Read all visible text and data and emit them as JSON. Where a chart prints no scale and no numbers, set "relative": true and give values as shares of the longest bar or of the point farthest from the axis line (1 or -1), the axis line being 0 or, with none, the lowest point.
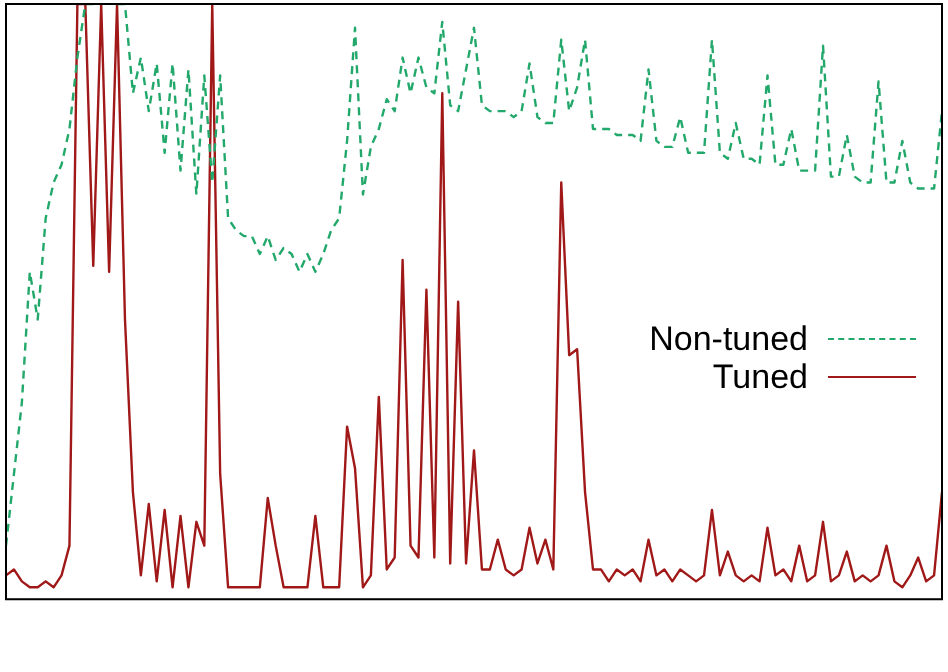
{
  "chart_data": {
    "type": "line",
    "relative": true,
    "marker": "none",
    "legend": "right",
    "grid": false,
    "categories": [
      null,
      null,
      null,
      null,
      null,
      null,
      null,
      null,
      null,
      null,
      null,
      null,
      null,
      null,
      null,
      null,
      null,
      null,
      null,
      null,
      null,
      null,
      null,
      null,
      null,
      null,
      null,
      null,
      null,
      null,
      null,
      null,
      null,
      null,
      null,
      null,
      null,
      null,
      null,
      null,
      null,
      null,
      null,
      null,
      null,
      null,
      null,
      null,
      null,
      null,
      null,
      null,
      null,
      null,
      null,
      null,
      null,
      null,
      null,
      null,
      null,
      null,
      null,
      null,
      null,
      null,
      null,
      null,
      null,
      null,
      null,
      null,
      null,
      null,
      null,
      null,
      null,
      null,
      null,
      null,
      null,
      null,
      null,
      null,
      null,
      null,
      null,
      null,
      null,
      null,
      null,
      null,
      null,
      null,
      null,
      null,
      null,
      null,
      null,
      null,
      null,
      null,
      null,
      null,
      null,
      null,
      null,
      null,
      null,
      null,
      null,
      null,
      null,
      null,
      null,
      null,
      null,
      null,
      null
    ],
    "series": [
      {
        "name": "Non-tuned",
        "color": "#22a86a",
        "line_style": "dashed",
        "values": [
          0.09,
          0.21,
          0.33,
          0.55,
          0.47,
          0.64,
          0.7,
          0.73,
          0.79,
          0.91,
          1,
          1,
          null,
          null,
          1,
          1,
          0.85,
          0.91,
          0.82,
          0.9,
          0.75,
          0.9,
          0.72,
          0.89,
          0.68,
          0.88,
          0.7,
          0.88,
          0.64,
          0.62,
          0.61,
          0.61,
          0.58,
          0.61,
          0.57,
          0.59,
          0.58,
          0.55,
          0.58,
          0.55,
          0.58,
          0.62,
          0.64,
          0.77,
          0.96,
          0.68,
          0.76,
          0.79,
          0.84,
          0.82,
          0.91,
          0.85,
          0.91,
          0.86,
          0.85,
          0.97,
          0.83,
          0.82,
          0.89,
          0.96,
          0.83,
          0.82,
          0.82,
          0.82,
          0.81,
          0.82,
          0.9,
          0.81,
          0.8,
          0.8,
          0.94,
          0.82,
          0.86,
          0.94,
          0.79,
          0.79,
          0.79,
          0.78,
          0.78,
          0.78,
          0.77,
          0.89,
          0.77,
          0.76,
          0.76,
          0.81,
          0.75,
          0.75,
          0.75,
          0.94,
          0.75,
          0.74,
          0.8,
          0.74,
          0.74,
          0.73,
          0.88,
          0.73,
          0.73,
          0.79,
          0.72,
          0.72,
          0.72,
          0.93,
          0.71,
          0.71,
          0.78,
          0.71,
          0.7,
          0.7,
          0.87,
          0.7,
          0.7,
          0.77,
          0.7,
          0.69,
          0.69,
          0.69,
          0.82
        ]
      },
      {
        "name": "Tuned",
        "color": "#a01818",
        "line_style": "solid",
        "values": [
          0.04,
          0.05,
          0.03,
          0.02,
          0.02,
          0.03,
          0.02,
          0.04,
          0.09,
          1,
          1,
          0.56,
          1,
          0.55,
          1,
          0.47,
          0.18,
          0.04,
          0.16,
          0.03,
          0.15,
          0.02,
          0.14,
          0.02,
          0.13,
          0.09,
          1,
          0.21,
          0.02,
          0.02,
          0.02,
          0.02,
          0.02,
          0.17,
          0.09,
          0.02,
          0.02,
          0.02,
          0.02,
          0.14,
          0.02,
          0.02,
          0.02,
          0.29,
          0.22,
          0.02,
          0.04,
          0.34,
          0.05,
          0.07,
          0.57,
          0.09,
          0.07,
          0.52,
          0.07,
          0.85,
          0.06,
          0.5,
          0.06,
          0.25,
          0.05,
          0.05,
          0.1,
          0.05,
          0.04,
          0.05,
          0.12,
          0.06,
          0.1,
          0.05,
          0.7,
          0.41,
          0.42,
          0.18,
          0.05,
          0.05,
          0.03,
          0.05,
          0.04,
          0.05,
          0.03,
          0.1,
          0.04,
          0.05,
          0.03,
          0.05,
          0.04,
          0.03,
          0.04,
          0.15,
          0.04,
          0.08,
          0.04,
          0.03,
          0.04,
          0.03,
          0.12,
          0.04,
          0.05,
          0.03,
          0.09,
          0.03,
          0.04,
          0.13,
          0.03,
          0.04,
          0.08,
          0.03,
          0.04,
          0.03,
          0.04,
          0.09,
          0.03,
          0.02,
          0.04,
          0.07,
          0.03,
          0.04,
          0.18
        ]
      }
    ]
  }
}
